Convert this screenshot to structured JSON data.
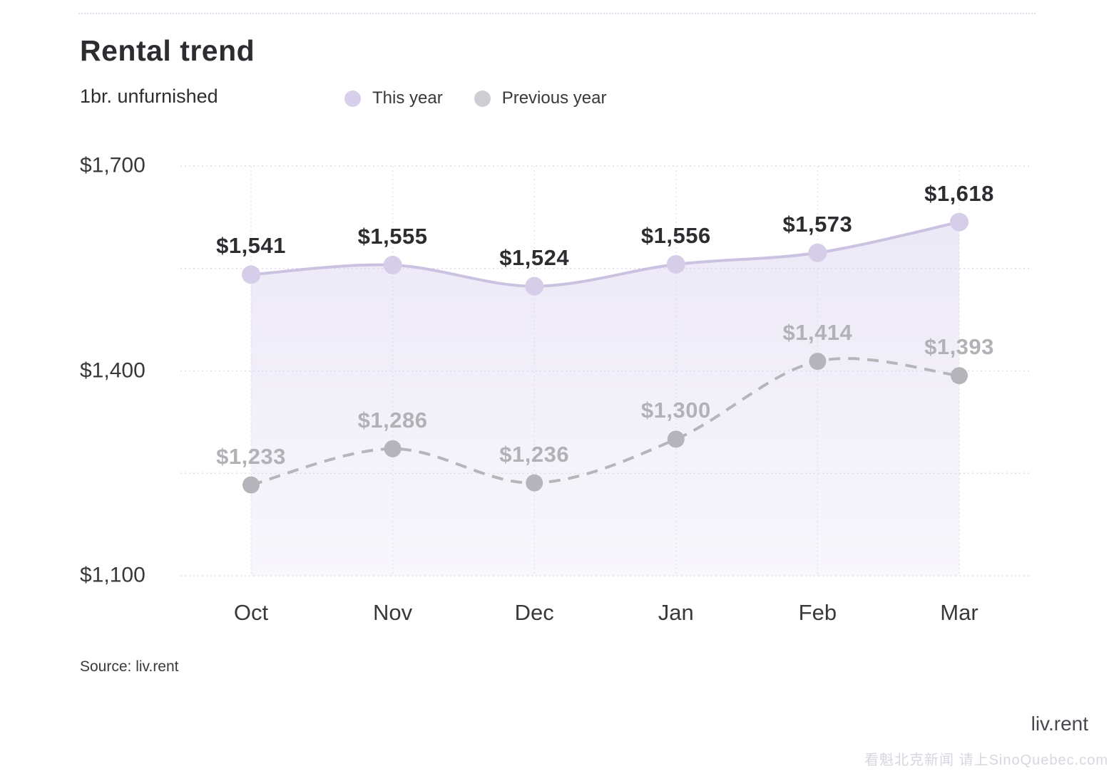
{
  "header": {
    "title": "Rental trend",
    "subtitle": "1br. unfurnished"
  },
  "legend": [
    {
      "label": "This year",
      "color": "#d8d0ea"
    },
    {
      "label": "Previous year",
      "color": "#cdcdd4"
    }
  ],
  "chart_data": {
    "type": "line",
    "title": "Rental trend",
    "subtitle": "1br. unfurnished",
    "categories": [
      "Oct",
      "Nov",
      "Dec",
      "Jan",
      "Feb",
      "Mar"
    ],
    "series": [
      {
        "name": "This year",
        "values": [
          1541,
          1555,
          1524,
          1556,
          1573,
          1618
        ],
        "labels": [
          "$1,541",
          "$1,555",
          "$1,524",
          "$1,556",
          "$1,573",
          "$1,618"
        ],
        "color": "#cbc1e1",
        "point_color": "#d6cde8",
        "area_color": "#d9d2ee",
        "style": "solid",
        "area": true
      },
      {
        "name": "Previous year",
        "values": [
          1233,
          1286,
          1236,
          1300,
          1414,
          1393
        ],
        "labels": [
          "$1,233",
          "$1,286",
          "$1,236",
          "$1,300",
          "$1,414",
          "$1,393"
        ],
        "color": "#b6b5ba",
        "point_color": "#b5b4ba",
        "style": "dashed",
        "area": false
      }
    ],
    "yticks": [
      {
        "value": 1700,
        "label": "$1,700"
      },
      {
        "value": 1400,
        "label": "$1,400"
      },
      {
        "value": 1100,
        "label": "$1,100"
      }
    ],
    "gridline_values": [
      1700,
      1550,
      1400,
      1250,
      1100
    ],
    "ylim": [
      1100,
      1700
    ],
    "grid": true,
    "legend_position": "top"
  },
  "footer": {
    "source": "Source: liv.rent",
    "brand": "liv.rent",
    "watermark": "看魁北克新闻 请上SinoQuebec.com"
  }
}
